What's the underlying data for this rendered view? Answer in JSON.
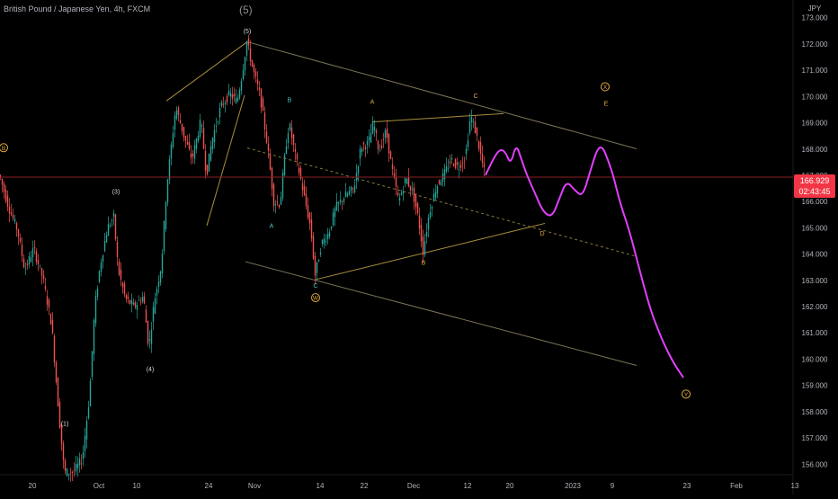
{
  "legend": {
    "symbol": "British Pound / Japanese Yen, 4h, FXCM"
  },
  "wave_title": "(5)",
  "colors": {
    "background": "#000000",
    "up": "#26a69a",
    "down": "#ef5350",
    "wave_labels": "#e0a93b",
    "projection": "#e040fb",
    "channel": "#7d7557",
    "price_line": "#8b1f23",
    "badge": "#f23645"
  },
  "price_badge": {
    "price": "166.929",
    "countdown": "02:43:45"
  },
  "chart_data": {
    "type": "candlestick",
    "currency": "JPY",
    "y_ticks": [
      "173.000",
      "172.000",
      "171.000",
      "170.000",
      "169.000",
      "168.000",
      "167.000",
      "166.000",
      "165.000",
      "164.000",
      "163.000",
      "162.000",
      "161.000",
      "160.000",
      "159.000",
      "158.000",
      "157.000",
      "156.000"
    ],
    "ylim": [
      155.6,
      173.4
    ],
    "x_ticks": [
      {
        "label": "20",
        "t": 36
      },
      {
        "label": "Oct",
        "t": 110
      },
      {
        "label": "10",
        "t": 152
      },
      {
        "label": "24",
        "t": 232
      },
      {
        "label": "Nov",
        "t": 283
      },
      {
        "label": "14",
        "t": 356
      },
      {
        "label": "22",
        "t": 405
      },
      {
        "label": "Dec",
        "t": 460
      },
      {
        "label": "12",
        "t": 520
      },
      {
        "label": "20",
        "t": 567
      },
      {
        "label": "2023",
        "t": 637
      },
      {
        "label": "9",
        "t": 681
      },
      {
        "label": "23",
        "t": 764
      },
      {
        "label": "Feb",
        "t": 819
      },
      {
        "label": "13",
        "t": 884
      }
    ],
    "last_price": 166.929,
    "price_path": [
      [
        0,
        167.0
      ],
      [
        10,
        165.8
      ],
      [
        20,
        164.9
      ],
      [
        28,
        163.4
      ],
      [
        38,
        164.2
      ],
      [
        48,
        163.1
      ],
      [
        58,
        161.3
      ],
      [
        66,
        157.9
      ],
      [
        72,
        155.7
      ],
      [
        82,
        155.7
      ],
      [
        92,
        156.2
      ],
      [
        100,
        158.6
      ],
      [
        106,
        162.0
      ],
      [
        112,
        163.6
      ],
      [
        120,
        165.0
      ],
      [
        127,
        165.4
      ],
      [
        132,
        163.4
      ],
      [
        140,
        162.3
      ],
      [
        150,
        162.0
      ],
      [
        160,
        162.4
      ],
      [
        166,
        160.4
      ],
      [
        172,
        162.2
      ],
      [
        180,
        163.6
      ],
      [
        186,
        166.6
      ],
      [
        196,
        169.6
      ],
      [
        206,
        168.4
      ],
      [
        214,
        167.6
      ],
      [
        224,
        169.1
      ],
      [
        230,
        167.0
      ],
      [
        236,
        168.3
      ],
      [
        246,
        169.6
      ],
      [
        256,
        170.1
      ],
      [
        264,
        169.8
      ],
      [
        270,
        170.9
      ],
      [
        275,
        172.1
      ],
      [
        282,
        171.0
      ],
      [
        290,
        170.0
      ],
      [
        298,
        168.1
      ],
      [
        305,
        166.0
      ],
      [
        312,
        165.9
      ],
      [
        318,
        168.0
      ],
      [
        322,
        169.0
      ],
      [
        328,
        167.9
      ],
      [
        334,
        167.0
      ],
      [
        340,
        166.0
      ],
      [
        346,
        165.0
      ],
      [
        351,
        163.2
      ],
      [
        358,
        164.4
      ],
      [
        366,
        164.8
      ],
      [
        374,
        165.8
      ],
      [
        384,
        166.2
      ],
      [
        394,
        166.5
      ],
      [
        402,
        168.1
      ],
      [
        410,
        168.2
      ],
      [
        416,
        169.0
      ],
      [
        422,
        167.9
      ],
      [
        430,
        168.7
      ],
      [
        436,
        167.3
      ],
      [
        444,
        166.0
      ],
      [
        452,
        166.9
      ],
      [
        460,
        166.3
      ],
      [
        466,
        165.3
      ],
      [
        471,
        164.1
      ],
      [
        478,
        165.6
      ],
      [
        486,
        166.6
      ],
      [
        494,
        167.0
      ],
      [
        502,
        167.6
      ],
      [
        510,
        167.3
      ],
      [
        518,
        167.7
      ],
      [
        524,
        169.3
      ],
      [
        530,
        168.6
      ],
      [
        536,
        167.6
      ],
      [
        540,
        167.0
      ]
    ],
    "projection": [
      [
        540,
        167.0
      ],
      [
        548,
        167.6
      ],
      [
        556,
        168.0
      ],
      [
        562,
        167.9
      ],
      [
        568,
        167.4
      ],
      [
        574,
        168.2
      ],
      [
        580,
        167.6
      ],
      [
        586,
        167.0
      ],
      [
        594,
        166.4
      ],
      [
        604,
        165.6
      ],
      [
        614,
        165.4
      ],
      [
        622,
        166.1
      ],
      [
        630,
        166.8
      ],
      [
        640,
        166.4
      ],
      [
        648,
        166.2
      ],
      [
        656,
        167.1
      ],
      [
        664,
        168.0
      ],
      [
        670,
        168.1
      ],
      [
        676,
        167.6
      ],
      [
        682,
        167.0
      ],
      [
        690,
        165.9
      ],
      [
        700,
        164.9
      ],
      [
        712,
        163.3
      ],
      [
        724,
        161.8
      ],
      [
        738,
        160.6
      ],
      [
        750,
        159.8
      ],
      [
        760,
        159.3
      ]
    ],
    "wave_labels": [
      {
        "text": "B",
        "t": 4,
        "y": 168.05,
        "circled": true
      },
      {
        "text": "(1)",
        "t": 72,
        "y": 157.55
      },
      {
        "text": "(3)",
        "t": 129,
        "y": 166.38
      },
      {
        "text": "(4)",
        "t": 167,
        "y": 159.63
      },
      {
        "text": "(5)",
        "t": 275,
        "y": 172.49
      },
      {
        "text": "B",
        "t": 322,
        "y": 169.87
      },
      {
        "text": "A",
        "t": 302,
        "y": 165.08
      },
      {
        "text": "C",
        "t": 351,
        "y": 162.81
      },
      {
        "text": "W",
        "t": 351,
        "y": 162.34,
        "circled": true
      },
      {
        "text": "A",
        "t": 414,
        "y": 169.81
      },
      {
        "text": "B",
        "t": 471,
        "y": 163.67
      },
      {
        "text": "C",
        "t": 529,
        "y": 170.02
      },
      {
        "text": "D",
        "t": 603,
        "y": 164.79
      },
      {
        "text": "X",
        "t": 673,
        "y": 170.37,
        "circled": true
      },
      {
        "text": "E",
        "t": 674,
        "y": 169.74
      },
      {
        "text": "Y",
        "t": 763,
        "y": 158.67,
        "circled": true
      }
    ],
    "trend_lines": [
      {
        "style": "solid",
        "color": "#a88f3c",
        "from": [
          185,
          169.83
        ],
        "to": [
          275,
          172.08
        ]
      },
      {
        "style": "solid",
        "color": "#a88f3c",
        "from": [
          230,
          165.08
        ],
        "to": [
          272,
          170.05
        ]
      },
      {
        "style": "solid",
        "color": "#7d7557",
        "from": [
          275,
          172.08
        ],
        "to": [
          708,
          168.01
        ]
      },
      {
        "style": "solid",
        "color": "#7d7557",
        "from": [
          273,
          163.71
        ],
        "to": [
          708,
          159.76
        ]
      },
      {
        "style": "dashed",
        "color": "#8a7a3a",
        "from": [
          275,
          168.04
        ],
        "to": [
          708,
          163.91
        ]
      },
      {
        "style": "solid",
        "color": "#a88f3c",
        "from": [
          351,
          163.03
        ],
        "to": [
          606,
          165.17
        ]
      },
      {
        "style": "solid",
        "color": "#a88f3c",
        "from": [
          414,
          169.03
        ],
        "to": [
          560,
          169.35
        ]
      }
    ]
  }
}
